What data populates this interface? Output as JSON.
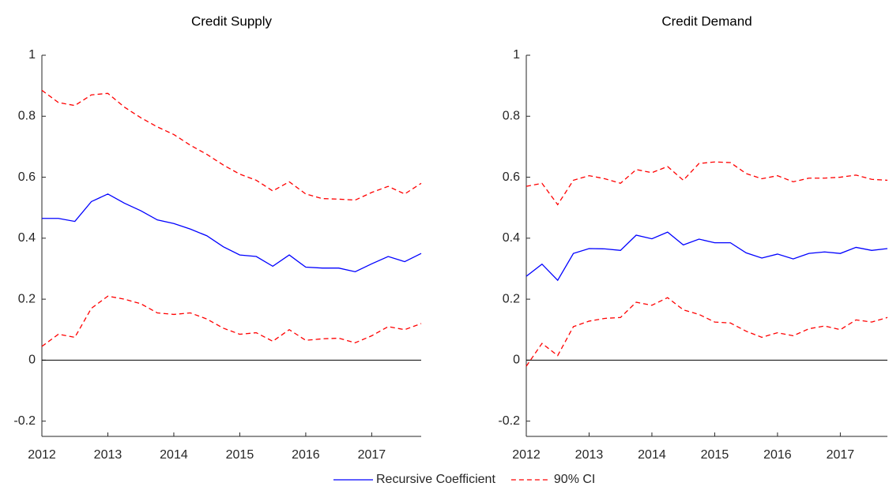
{
  "chart_data": [
    {
      "type": "line",
      "title": "Credit Supply",
      "x": [
        2012,
        2012.25,
        2012.5,
        2012.75,
        2013,
        2013.25,
        2013.5,
        2013.75,
        2014,
        2014.25,
        2014.5,
        2014.75,
        2015,
        2015.25,
        2015.5,
        2015.75,
        2016,
        2016.25,
        2016.5,
        2016.75,
        2017,
        2017.25,
        2017.5,
        2017.75
      ],
      "xlim": [
        2012,
        2017.75
      ],
      "xticks": [
        2012,
        2013,
        2014,
        2015,
        2016,
        2017
      ],
      "ylim": [
        -0.25,
        1
      ],
      "yticks": [
        -0.2,
        0,
        0.2,
        0.4,
        0.6,
        0.8,
        1
      ],
      "legend": "bottom",
      "series": [
        {
          "name": "Recursive Coefficient",
          "color": "#0000ff",
          "dashed": false,
          "values": [
            0.465,
            0.465,
            0.455,
            0.52,
            0.545,
            0.515,
            0.49,
            0.46,
            0.448,
            0.43,
            0.408,
            0.372,
            0.345,
            0.34,
            0.308,
            0.345,
            0.305,
            0.302,
            0.302,
            0.29,
            0.316,
            0.34,
            0.323,
            0.35
          ]
        },
        {
          "name": "90% CI",
          "color": "#ff0000",
          "dashed": true,
          "values": [
            0.885,
            0.845,
            0.835,
            0.87,
            0.875,
            0.83,
            0.795,
            0.765,
            0.74,
            0.705,
            0.675,
            0.64,
            0.61,
            0.59,
            0.555,
            0.585,
            0.545,
            0.53,
            0.528,
            0.525,
            0.55,
            0.57,
            0.545,
            0.58
          ],
          "lower": [
            0.045,
            0.085,
            0.075,
            0.17,
            0.21,
            0.2,
            0.185,
            0.155,
            0.15,
            0.155,
            0.135,
            0.105,
            0.085,
            0.09,
            0.062,
            0.1,
            0.065,
            0.07,
            0.072,
            0.057,
            0.08,
            0.11,
            0.1,
            0.12
          ]
        }
      ]
    },
    {
      "type": "line",
      "title": "Credit Demand",
      "x": [
        2012,
        2012.25,
        2012.5,
        2012.75,
        2013,
        2013.25,
        2013.5,
        2013.75,
        2014,
        2014.25,
        2014.5,
        2014.75,
        2015,
        2015.25,
        2015.5,
        2015.75,
        2016,
        2016.25,
        2016.5,
        2016.75,
        2017,
        2017.25,
        2017.5,
        2017.75
      ],
      "xlim": [
        2012,
        2017.75
      ],
      "xticks": [
        2012,
        2013,
        2014,
        2015,
        2016,
        2017
      ],
      "ylim": [
        -0.25,
        1
      ],
      "yticks": [
        -0.2,
        0,
        0.2,
        0.4,
        0.6,
        0.8,
        1
      ],
      "series": [
        {
          "color": "#0000ff",
          "dashed": false,
          "values": [
            0.275,
            0.315,
            0.262,
            0.35,
            0.366,
            0.365,
            0.36,
            0.41,
            0.398,
            0.42,
            0.378,
            0.397,
            0.385,
            0.385,
            0.352,
            0.335,
            0.348,
            0.332,
            0.35,
            0.355,
            0.35,
            0.37,
            0.36,
            0.366
          ]
        },
        {
          "color": "#ff0000",
          "dashed": true,
          "values": [
            0.57,
            0.58,
            0.51,
            0.59,
            0.605,
            0.595,
            0.58,
            0.625,
            0.615,
            0.635,
            0.59,
            0.645,
            0.65,
            0.648,
            0.612,
            0.595,
            0.605,
            0.585,
            0.597,
            0.597,
            0.6,
            0.607,
            0.593,
            0.59
          ],
          "lower": [
            -0.02,
            0.055,
            0.015,
            0.11,
            0.128,
            0.137,
            0.14,
            0.19,
            0.18,
            0.205,
            0.165,
            0.15,
            0.125,
            0.122,
            0.095,
            0.075,
            0.09,
            0.08,
            0.103,
            0.112,
            0.1,
            0.132,
            0.125,
            0.14
          ]
        }
      ]
    }
  ]
}
